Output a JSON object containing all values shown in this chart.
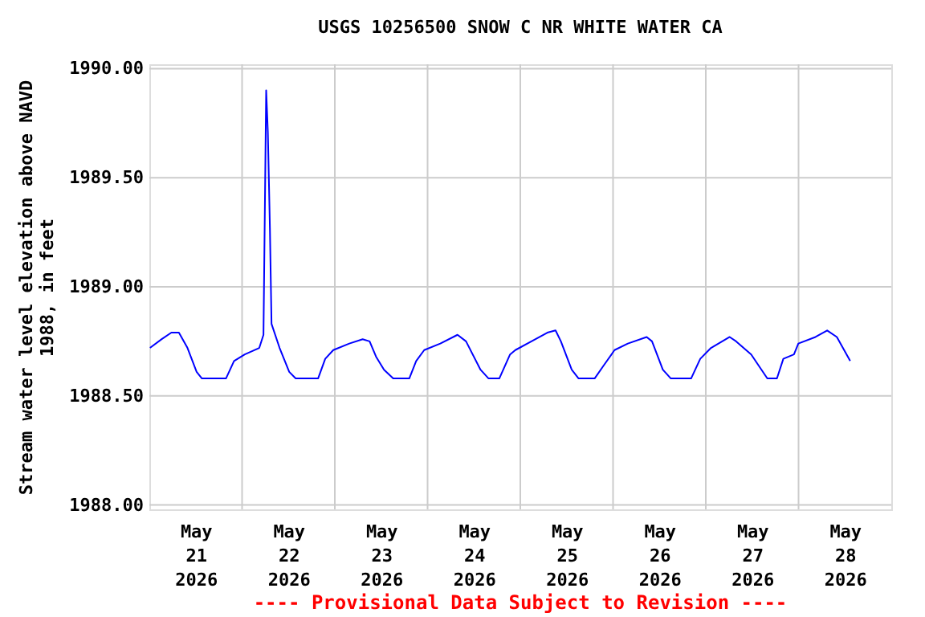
{
  "chart_data": {
    "type": "line",
    "title": "USGS 10256500 SNOW C NR WHITE WATER CA",
    "ylabel": "Stream water level elevation above NAVD 1988, in feet",
    "annotations": [
      "---- Provisional Data Subject to Revision ----"
    ],
    "series": [
      {
        "color": "#0000ff",
        "x": [
          "2026-05-21T00:10",
          "2026-05-21T03:12",
          "2026-05-21T05:42",
          "2026-05-21T07:39",
          "2026-05-21T09:52",
          "2026-05-21T12:14",
          "2026-05-21T13:36",
          "2026-05-21T19:50",
          "2026-05-21T21:55",
          "2026-05-22T00:42",
          "2026-05-22T04:27",
          "2026-05-22T05:32",
          "2026-05-22T06:14",
          "2026-05-22T06:40",
          "2026-05-22T07:12",
          "2026-05-22T07:37",
          "2026-05-22T09:42",
          "2026-05-22T12:12",
          "2026-05-22T13:52",
          "2026-05-22T19:40",
          "2026-05-22T21:31",
          "2026-05-22T23:36",
          "2026-05-23T03:45",
          "2026-05-23T07:12",
          "2026-05-23T09:00",
          "2026-05-23T10:40",
          "2026-05-23T12:44",
          "2026-05-23T15:06",
          "2026-05-23T19:16",
          "2026-05-23T21:03",
          "2026-05-23T23:08",
          "2026-05-24T03:18",
          "2026-05-24T07:45",
          "2026-05-24T09:57",
          "2026-05-24T13:42",
          "2026-05-24T15:47",
          "2026-05-24T18:34",
          "2026-05-24T21:21",
          "2026-05-24T22:43",
          "2026-05-25T02:53",
          "2026-05-25T07:00",
          "2026-05-25T09:07",
          "2026-05-25T10:30",
          "2026-05-25T13:18",
          "2026-05-25T15:05",
          "2026-05-25T19:14",
          "2026-05-25T21:36",
          "2026-05-26T00:23",
          "2026-05-26T03:50",
          "2026-05-26T08:42",
          "2026-05-26T10:05",
          "2026-05-26T12:53",
          "2026-05-26T14:57",
          "2026-05-26T20:12",
          "2026-05-26T22:34",
          "2026-05-27T01:21",
          "2026-05-27T06:11",
          "2026-05-27T07:51",
          "2026-05-27T11:45",
          "2026-05-27T15:55",
          "2026-05-27T18:25",
          "2026-05-27T20:04",
          "2026-05-27T22:49",
          "2026-05-27T23:57",
          "2026-05-28T04:23",
          "2026-05-28T07:25",
          "2026-05-28T09:55",
          "2026-05-28T13:22"
        ],
        "values": [
          1988.72,
          1988.76,
          1988.79,
          1988.79,
          1988.72,
          1988.61,
          1988.58,
          1988.58,
          1988.66,
          1988.69,
          1988.72,
          1988.78,
          1989.9,
          1989.71,
          1989.27,
          1988.83,
          1988.72,
          1988.61,
          1988.58,
          1988.58,
          1988.67,
          1988.71,
          1988.74,
          1988.76,
          1988.75,
          1988.68,
          1988.62,
          1988.58,
          1988.58,
          1988.66,
          1988.71,
          1988.74,
          1988.78,
          1988.75,
          1988.62,
          1988.58,
          1988.58,
          1988.69,
          1988.71,
          1988.75,
          1988.79,
          1988.8,
          1988.75,
          1988.62,
          1988.58,
          1988.58,
          1988.64,
          1988.71,
          1988.74,
          1988.77,
          1988.75,
          1988.62,
          1988.58,
          1988.58,
          1988.67,
          1988.72,
          1988.77,
          1988.75,
          1988.69,
          1988.58,
          1988.58,
          1988.67,
          1988.69,
          1988.74,
          1988.77,
          1988.8,
          1988.77,
          1988.66
        ]
      }
    ],
    "xlim": [
      "2026-05-21T00:00",
      "2026-05-29T00:00"
    ],
    "xticks": [
      {
        "value": "2026-05-21T12:00",
        "label": "May 21 2026"
      },
      {
        "value": "2026-05-22T00:00",
        "label": null
      },
      {
        "value": "2026-05-22T12:00",
        "label": "May 22 2026"
      },
      {
        "value": "2026-05-23T00:00",
        "label": null
      },
      {
        "value": "2026-05-23T12:00",
        "label": "May 23 2026"
      },
      {
        "value": "2026-05-24T00:00",
        "label": null
      },
      {
        "value": "2026-05-24T12:00",
        "label": "May 24 2026"
      },
      {
        "value": "2026-05-25T00:00",
        "label": null
      },
      {
        "value": "2026-05-25T12:00",
        "label": "May 25 2026"
      },
      {
        "value": "2026-05-26T00:00",
        "label": null
      },
      {
        "value": "2026-05-26T12:00",
        "label": "May 26 2026"
      },
      {
        "value": "2026-05-27T00:00",
        "label": null
      },
      {
        "value": "2026-05-27T12:00",
        "label": "May 27 2026"
      },
      {
        "value": "2026-05-28T00:00",
        "label": null
      },
      {
        "value": "2026-05-28T12:00",
        "label": "May 28 2026"
      }
    ],
    "ylim": [
      1987.98,
      1990.02
    ],
    "yticks": [
      {
        "value": 1988.0,
        "label": "1988.00"
      },
      {
        "value": 1988.5,
        "label": "1988.50"
      },
      {
        "value": 1989.0,
        "label": "1989.00"
      },
      {
        "value": 1989.5,
        "label": "1989.50"
      },
      {
        "value": 1990.0,
        "label": "1990.00"
      }
    ],
    "grid": true,
    "marker": "none",
    "line_style": "solid"
  }
}
